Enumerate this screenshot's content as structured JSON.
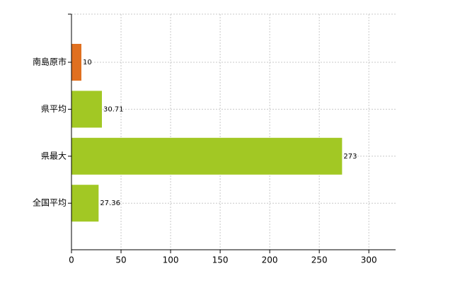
{
  "chart_data": {
    "type": "barh",
    "categories": [
      "南島原市",
      "県平均",
      "県最大",
      "全国平均"
    ],
    "values": [
      10,
      30.71,
      273,
      27.36
    ],
    "colors": [
      "#e07020",
      "#a2c824",
      "#a2c824",
      "#a2c824"
    ],
    "xlim": [
      0,
      327
    ],
    "xticks": [
      0,
      50,
      100,
      150,
      200,
      250,
      300
    ],
    "grid": true
  }
}
